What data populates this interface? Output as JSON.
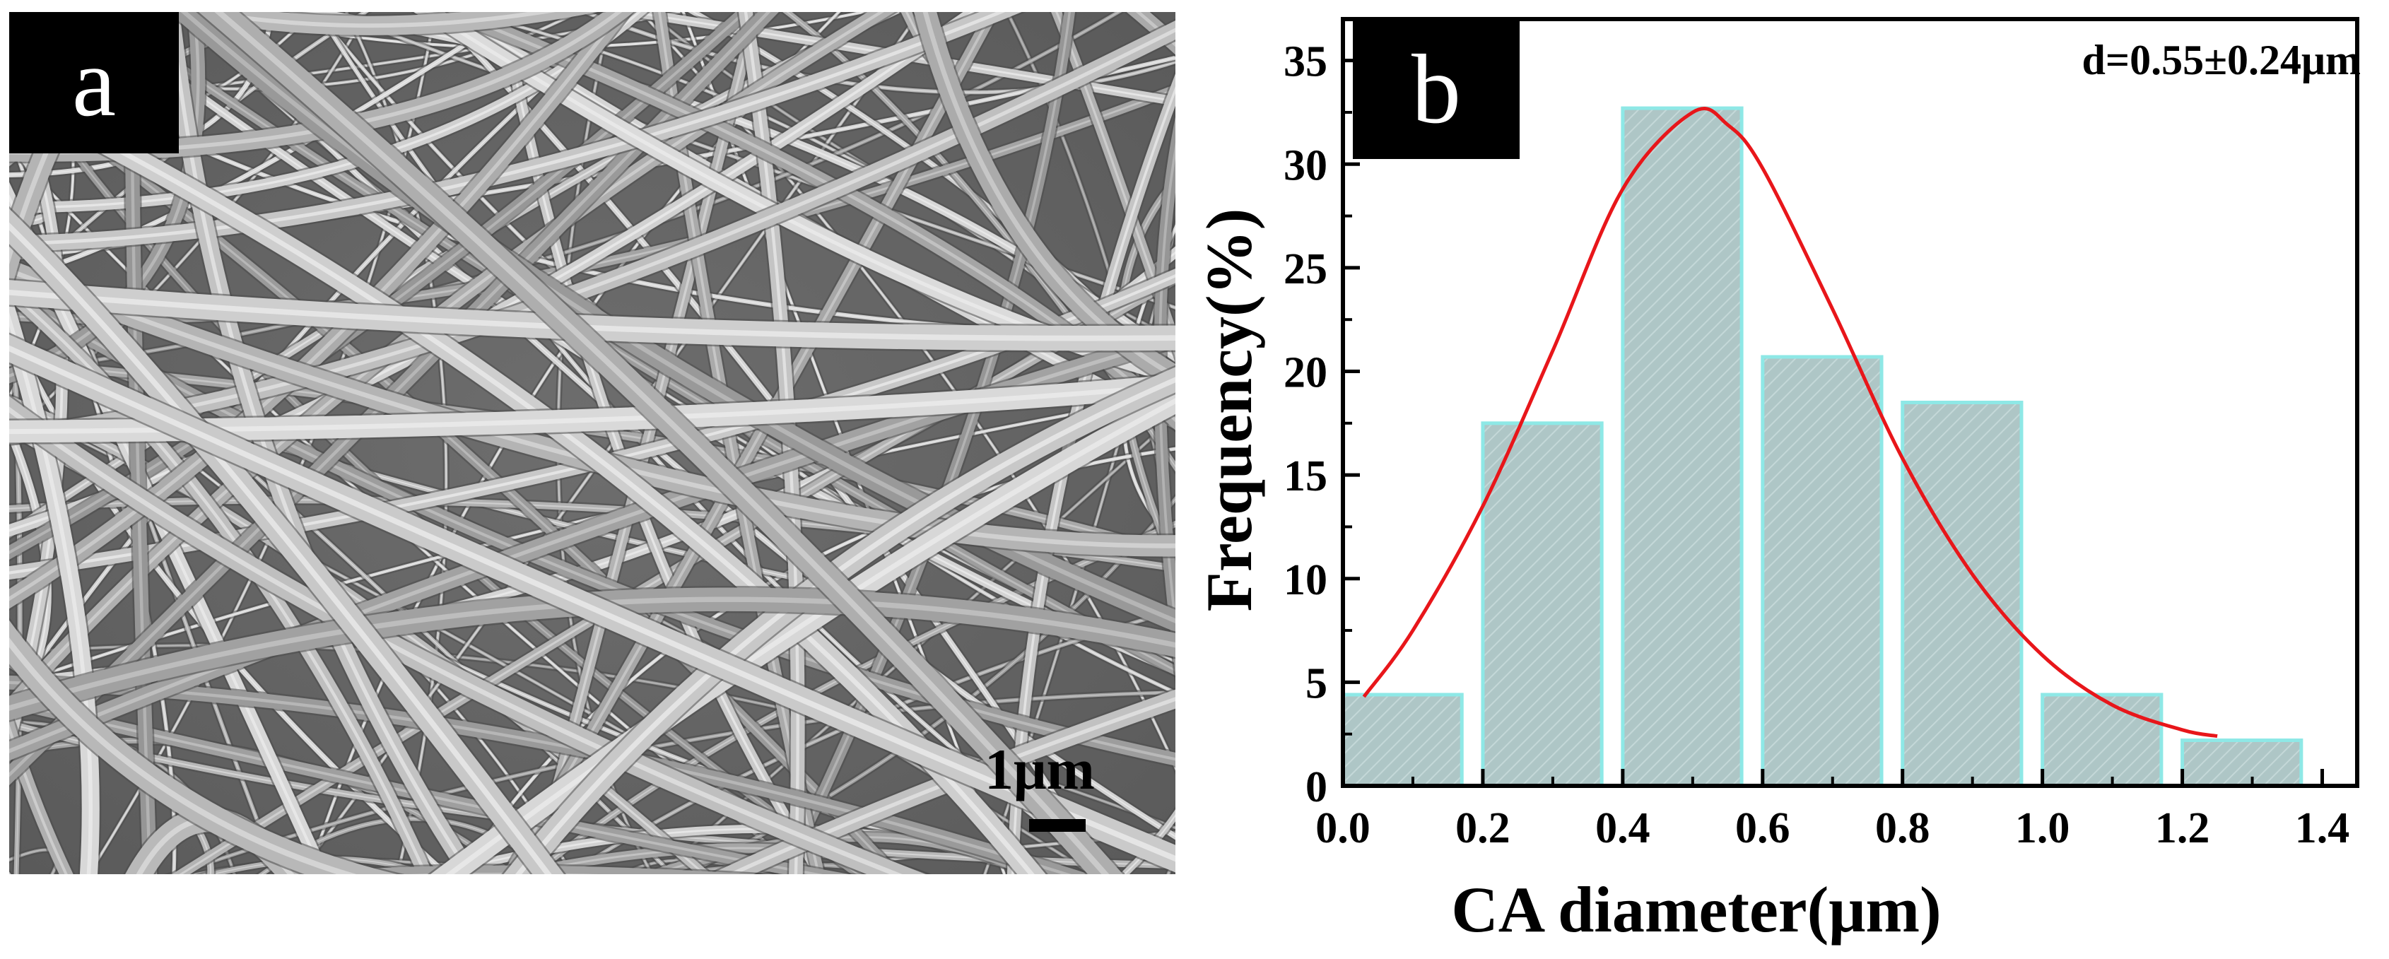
{
  "panel_a": {
    "label": "a",
    "scale_bar_text": "1μm"
  },
  "panel_b": {
    "label": "b"
  },
  "chart_data": {
    "type": "bar",
    "title": "",
    "annotation": "d=0.55±0.24μm",
    "xlabel": "CA diameter(μm)",
    "ylabel": "Frequency(%)",
    "xlim": [
      0.0,
      1.45
    ],
    "ylim": [
      0,
      37
    ],
    "x_ticks": [
      "0.0",
      "0.2",
      "0.4",
      "0.6",
      "0.8",
      "1.0",
      "1.2",
      "1.4"
    ],
    "y_ticks": [
      "0",
      "5",
      "10",
      "15",
      "20",
      "25",
      "30",
      "35"
    ],
    "bars": [
      {
        "x_start": 0.0,
        "x_end": 0.17,
        "value": 4.4
      },
      {
        "x_start": 0.2,
        "x_end": 0.37,
        "value": 17.5
      },
      {
        "x_start": 0.4,
        "x_end": 0.57,
        "value": 32.7
      },
      {
        "x_start": 0.6,
        "x_end": 0.77,
        "value": 20.7
      },
      {
        "x_start": 0.8,
        "x_end": 0.97,
        "value": 18.5
      },
      {
        "x_start": 1.0,
        "x_end": 1.17,
        "value": 4.4
      },
      {
        "x_start": 1.2,
        "x_end": 1.37,
        "value": 2.2
      }
    ],
    "fit_curve": {
      "type": "gaussian",
      "points": [
        [
          0.03,
          4.3
        ],
        [
          0.1,
          7.5
        ],
        [
          0.2,
          13.5
        ],
        [
          0.3,
          21.0
        ],
        [
          0.4,
          28.8
        ],
        [
          0.5,
          32.5
        ],
        [
          0.55,
          31.9
        ],
        [
          0.6,
          29.8
        ],
        [
          0.7,
          23.0
        ],
        [
          0.8,
          15.8
        ],
        [
          0.9,
          10.2
        ],
        [
          1.0,
          6.3
        ],
        [
          1.1,
          3.9
        ],
        [
          1.2,
          2.7
        ],
        [
          1.25,
          2.4
        ]
      ]
    },
    "grid": false,
    "colors": {
      "bar_fill": "#aec6c6",
      "bar_edge": "#8ee8e6",
      "fit_line": "#e8161a",
      "axis": "#000000"
    }
  }
}
